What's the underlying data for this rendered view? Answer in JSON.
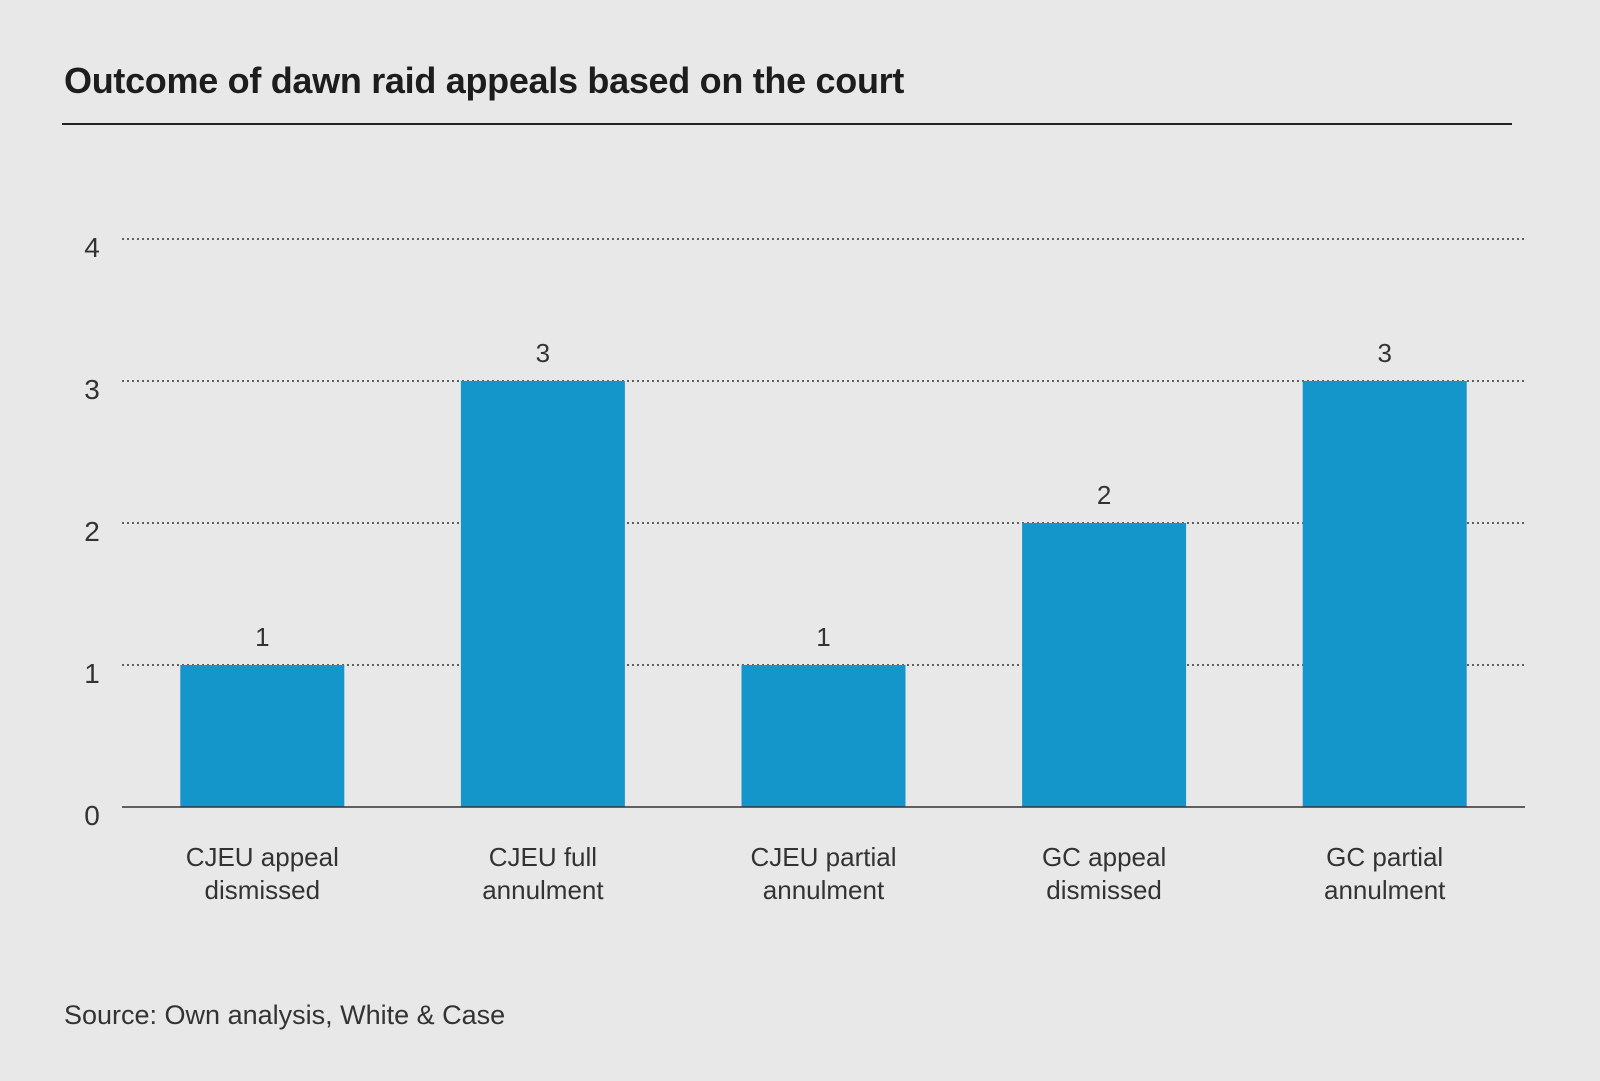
{
  "title": "Outcome of dawn raid appeals based on the court",
  "source": "Source: Own analysis, White & Case",
  "colors": {
    "bar": "#1596cb",
    "background": "#e7e8e7",
    "text": "#222222"
  },
  "chart_data": {
    "type": "bar",
    "title": "Outcome of dawn raid appeals based on the court",
    "xlabel": "",
    "ylabel": "",
    "categories": [
      [
        "CJEU appeal",
        "dismissed"
      ],
      [
        "CJEU full",
        "annulment"
      ],
      [
        "CJEU partial",
        "annulment"
      ],
      [
        "GC appeal",
        "dismissed"
      ],
      [
        "GC partial",
        "annulment"
      ]
    ],
    "values": [
      1,
      3,
      1,
      2,
      3
    ],
    "ylim": [
      0,
      4
    ],
    "yticks": [
      0,
      1,
      2,
      3,
      4
    ],
    "grid": true,
    "data_labels": true,
    "legend": "none"
  }
}
